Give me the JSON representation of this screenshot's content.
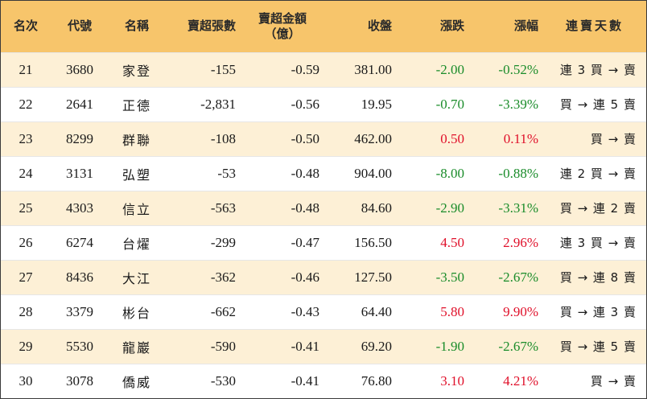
{
  "headers": {
    "rank": "名次",
    "code": "代號",
    "name": "名稱",
    "net_sell_lots": "賣超張數",
    "net_sell_amount_line1": "賣超金額",
    "net_sell_amount_line2": "（億）",
    "close": "收盤",
    "change": "漲跌",
    "pct": "漲幅",
    "streak": "連賣天數"
  },
  "colors": {
    "header_bg": "#f7c56b",
    "stripe_bg": "#fdf0d6",
    "down": "#1a8c2a",
    "up": "#e0102a"
  },
  "rows": [
    {
      "rank": "21",
      "code": "3680",
      "name": "家登",
      "lots": "-155",
      "amount": "-0.59",
      "close": "381.00",
      "change": "-2.00",
      "pct": "-0.52%",
      "streak": "連 3 買 → 賣",
      "dir": "down"
    },
    {
      "rank": "22",
      "code": "2641",
      "name": "正德",
      "lots": "-2,831",
      "amount": "-0.56",
      "close": "19.95",
      "change": "-0.70",
      "pct": "-3.39%",
      "streak": "買 → 連 5 賣",
      "dir": "down"
    },
    {
      "rank": "23",
      "code": "8299",
      "name": "群聯",
      "lots": "-108",
      "amount": "-0.50",
      "close": "462.00",
      "change": "0.50",
      "pct": "0.11%",
      "streak": "買 → 賣",
      "dir": "up"
    },
    {
      "rank": "24",
      "code": "3131",
      "name": "弘塑",
      "lots": "-53",
      "amount": "-0.48",
      "close": "904.00",
      "change": "-8.00",
      "pct": "-0.88%",
      "streak": "連 2 買 → 賣",
      "dir": "down"
    },
    {
      "rank": "25",
      "code": "4303",
      "name": "信立",
      "lots": "-563",
      "amount": "-0.48",
      "close": "84.60",
      "change": "-2.90",
      "pct": "-3.31%",
      "streak": "買 → 連 2 賣",
      "dir": "down"
    },
    {
      "rank": "26",
      "code": "6274",
      "name": "台燿",
      "lots": "-299",
      "amount": "-0.47",
      "close": "156.50",
      "change": "4.50",
      "pct": "2.96%",
      "streak": "連 3 買 → 賣",
      "dir": "up"
    },
    {
      "rank": "27",
      "code": "8436",
      "name": "大江",
      "lots": "-362",
      "amount": "-0.46",
      "close": "127.50",
      "change": "-3.50",
      "pct": "-2.67%",
      "streak": "買 → 連 8 賣",
      "dir": "down"
    },
    {
      "rank": "28",
      "code": "3379",
      "name": "彬台",
      "lots": "-662",
      "amount": "-0.43",
      "close": "64.40",
      "change": "5.80",
      "pct": "9.90%",
      "streak": "買 → 連 3 賣",
      "dir": "up"
    },
    {
      "rank": "29",
      "code": "5530",
      "name": "龍巖",
      "lots": "-590",
      "amount": "-0.41",
      "close": "69.20",
      "change": "-1.90",
      "pct": "-2.67%",
      "streak": "買 → 連 5 賣",
      "dir": "down"
    },
    {
      "rank": "30",
      "code": "3078",
      "name": "僑威",
      "lots": "-530",
      "amount": "-0.41",
      "close": "76.80",
      "change": "3.10",
      "pct": "4.21%",
      "streak": "買 → 賣",
      "dir": "up"
    }
  ]
}
